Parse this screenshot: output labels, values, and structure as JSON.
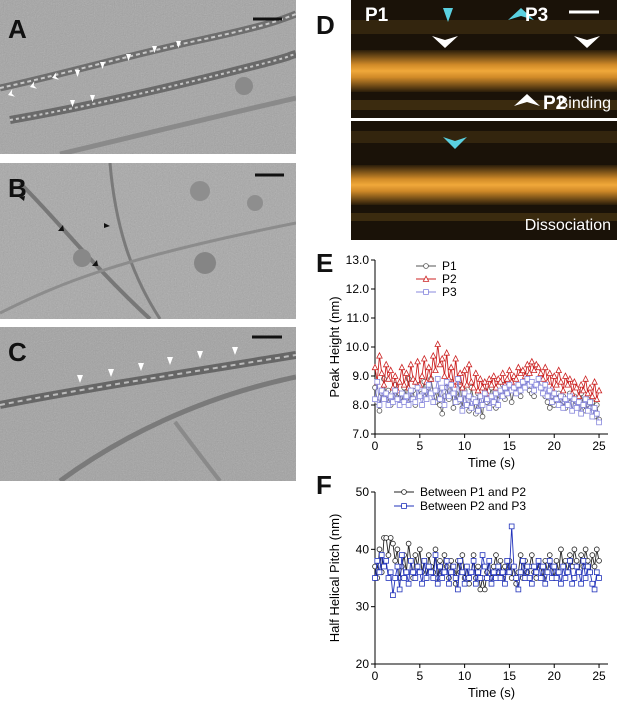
{
  "figure": {
    "panels": {
      "a": {
        "label": "A"
      },
      "b": {
        "label": "B"
      },
      "c": {
        "label": "C"
      },
      "d": {
        "label": "D",
        "markers": {
          "p1": "P1",
          "p2": "P2",
          "p3": "P3"
        },
        "captions": {
          "top": "Binding",
          "bottom": "Dissociation"
        }
      },
      "e": {
        "label": "E"
      },
      "f": {
        "label": "F"
      }
    },
    "colors": {
      "p1": "#555555",
      "p2": "#cc2222",
      "p3": "#8888dd",
      "between_p1_p2": "#222222",
      "between_p2_p3": "#2233bb",
      "afm_band": "#e8a030",
      "afm_marker_cyan": "#5ad0e0"
    }
  },
  "chart_data": [
    {
      "type": "line",
      "panel": "E",
      "xlabel": "Time (s)",
      "ylabel": "Peak Height (nm)",
      "xlim": [
        0,
        26
      ],
      "ylim": [
        7.0,
        13.0
      ],
      "xticks": [
        "0",
        "5",
        "10",
        "15",
        "20",
        "25"
      ],
      "yticks": [
        "7.0",
        "8.0",
        "9.0",
        "10.0",
        "11.0",
        "12.0",
        "13.0"
      ],
      "legend": "top-left",
      "series": [
        {
          "name": "P1",
          "marker": "circle",
          "x": [
            0.0,
            0.25,
            0.5,
            0.75,
            1.0,
            1.25,
            1.5,
            1.75,
            2.0,
            2.25,
            2.5,
            2.75,
            3.0,
            3.25,
            3.5,
            3.75,
            4.0,
            4.25,
            4.5,
            4.75,
            5.0,
            5.25,
            5.5,
            5.75,
            6.0,
            6.25,
            6.5,
            6.75,
            7.0,
            7.25,
            7.5,
            7.75,
            8.0,
            8.25,
            8.5,
            8.75,
            9.0,
            9.25,
            9.5,
            9.75,
            10.0,
            10.25,
            10.5,
            10.75,
            11.0,
            11.25,
            11.5,
            11.75,
            12.0,
            12.25,
            12.5,
            12.75,
            13.0,
            13.25,
            13.5,
            13.75,
            14.0,
            14.25,
            14.5,
            14.75,
            15.0,
            15.25,
            15.5,
            15.75,
            16.0,
            16.25,
            16.5,
            16.75,
            17.0,
            17.25,
            17.5,
            17.75,
            18.0,
            18.25,
            18.5,
            18.75,
            19.0,
            19.25,
            19.5,
            19.75,
            20.0,
            20.25,
            20.5,
            20.75,
            21.0,
            21.25,
            21.5,
            21.75,
            22.0,
            22.25,
            22.5,
            22.75,
            23.0,
            23.25,
            23.5,
            23.75,
            24.0,
            24.25,
            24.5,
            24.75,
            25.0
          ],
          "y": [
            8.6,
            8.1,
            7.8,
            8.4,
            8.9,
            8.2,
            8.5,
            8.0,
            8.3,
            8.7,
            8.2,
            8.4,
            8.1,
            8.6,
            8.3,
            8.9,
            8.2,
            8.5,
            8.0,
            8.7,
            8.3,
            8.4,
            8.8,
            8.2,
            8.6,
            8.9,
            8.4,
            8.1,
            8.5,
            8.0,
            7.7,
            8.3,
            8.6,
            8.2,
            8.8,
            7.9,
            8.4,
            8.1,
            8.7,
            7.9,
            8.5,
            8.0,
            7.8,
            8.6,
            8.2,
            7.7,
            8.4,
            8.0,
            7.6,
            8.5,
            8.1,
            8.3,
            8.6,
            8.0,
            7.9,
            8.4,
            8.3,
            8.7,
            8.2,
            8.4,
            8.6,
            8.1,
            8.5,
            8.4,
            8.7,
            8.3,
            8.6,
            8.8,
            9.0,
            8.5,
            8.4,
            8.3,
            8.7,
            8.9,
            8.6,
            8.4,
            8.3,
            8.1,
            7.9,
            8.3,
            8.0,
            8.2,
            8.4,
            8.0,
            8.3,
            7.9,
            8.2,
            8.4,
            7.8,
            8.3,
            8.1,
            7.9,
            8.4,
            8.0,
            7.8,
            8.2,
            7.9,
            8.1,
            7.6,
            8.0,
            7.5
          ]
        },
        {
          "name": "P2",
          "marker": "triangle",
          "x": [
            0.0,
            0.25,
            0.5,
            0.75,
            1.0,
            1.25,
            1.5,
            1.75,
            2.0,
            2.25,
            2.5,
            2.75,
            3.0,
            3.25,
            3.5,
            3.75,
            4.0,
            4.25,
            4.5,
            4.75,
            5.0,
            5.25,
            5.5,
            5.75,
            6.0,
            6.25,
            6.5,
            6.75,
            7.0,
            7.25,
            7.5,
            7.75,
            8.0,
            8.25,
            8.5,
            8.75,
            9.0,
            9.25,
            9.5,
            9.75,
            10.0,
            10.25,
            10.5,
            10.75,
            11.0,
            11.25,
            11.5,
            11.75,
            12.0,
            12.25,
            12.5,
            12.75,
            13.0,
            13.25,
            13.5,
            13.75,
            14.0,
            14.25,
            14.5,
            14.75,
            15.0,
            15.25,
            15.5,
            15.75,
            16.0,
            16.25,
            16.5,
            16.75,
            17.0,
            17.25,
            17.5,
            17.75,
            18.0,
            18.25,
            18.5,
            18.75,
            19.0,
            19.25,
            19.5,
            19.75,
            20.0,
            20.25,
            20.5,
            20.75,
            21.0,
            21.25,
            21.5,
            21.75,
            22.0,
            22.25,
            22.5,
            22.75,
            23.0,
            23.25,
            23.5,
            23.75,
            24.0,
            24.25,
            24.5,
            24.75,
            25.0
          ],
          "y": [
            9.3,
            8.8,
            9.7,
            9.1,
            8.7,
            9.4,
            8.9,
            9.2,
            8.6,
            9.0,
            8.5,
            8.8,
            9.3,
            8.7,
            9.1,
            8.6,
            9.4,
            8.9,
            8.8,
            9.5,
            8.7,
            9.0,
            9.6,
            8.8,
            9.3,
            8.9,
            9.7,
            9.2,
            10.1,
            9.4,
            9.6,
            9.0,
            9.8,
            8.9,
            9.3,
            8.7,
            9.6,
            8.8,
            9.1,
            8.6,
            9.2,
            8.7,
            9.4,
            8.8,
            8.6,
            9.1,
            8.5,
            8.9,
            8.6,
            8.8,
            8.4,
            8.9,
            8.7,
            9.0,
            8.6,
            8.9,
            8.8,
            9.1,
            8.7,
            8.9,
            9.2,
            8.8,
            9.0,
            8.9,
            9.3,
            9.1,
            9.2,
            9.0,
            9.4,
            9.1,
            9.5,
            9.2,
            9.4,
            9.3,
            9.1,
            8.9,
            9.3,
            8.8,
            9.1,
            8.6,
            9.0,
            8.7,
            9.2,
            8.8,
            8.5,
            9.0,
            8.7,
            8.9,
            8.4,
            8.8,
            8.6,
            8.3,
            8.7,
            8.5,
            8.9,
            8.4,
            8.6,
            8.3,
            8.8,
            8.2,
            8.5
          ]
        },
        {
          "name": "P3",
          "marker": "square",
          "x": [
            0.0,
            0.25,
            0.5,
            0.75,
            1.0,
            1.25,
            1.5,
            1.75,
            2.0,
            2.25,
            2.5,
            2.75,
            3.0,
            3.25,
            3.5,
            3.75,
            4.0,
            4.25,
            4.5,
            4.75,
            5.0,
            5.25,
            5.5,
            5.75,
            6.0,
            6.25,
            6.5,
            6.75,
            7.0,
            7.25,
            7.5,
            7.75,
            8.0,
            8.25,
            8.5,
            8.75,
            9.0,
            9.25,
            9.5,
            9.75,
            10.0,
            10.25,
            10.5,
            10.75,
            11.0,
            11.25,
            11.5,
            11.75,
            12.0,
            12.25,
            12.5,
            12.75,
            13.0,
            13.25,
            13.5,
            13.75,
            14.0,
            14.25,
            14.5,
            14.75,
            15.0,
            15.25,
            15.5,
            15.75,
            16.0,
            16.25,
            16.5,
            16.75,
            17.0,
            17.25,
            17.5,
            17.75,
            18.0,
            18.25,
            18.5,
            18.75,
            19.0,
            19.25,
            19.5,
            19.75,
            20.0,
            20.25,
            20.5,
            20.75,
            21.0,
            21.25,
            21.5,
            21.75,
            22.0,
            22.25,
            22.5,
            22.75,
            23.0,
            23.25,
            23.5,
            23.75,
            24.0,
            24.25,
            24.5,
            24.75,
            25.0
          ],
          "y": [
            8.2,
            8.8,
            8.0,
            8.5,
            8.2,
            8.4,
            8.0,
            8.3,
            8.1,
            8.5,
            8.2,
            8.0,
            8.4,
            8.1,
            8.3,
            8.0,
            8.5,
            8.2,
            8.1,
            8.6,
            8.3,
            8.0,
            8.5,
            8.2,
            8.7,
            8.4,
            8.1,
            8.5,
            8.9,
            8.2,
            8.6,
            8.0,
            8.8,
            8.3,
            8.7,
            8.4,
            8.1,
            8.9,
            8.2,
            7.8,
            8.4,
            8.0,
            8.3,
            7.9,
            8.2,
            8.1,
            7.8,
            8.3,
            8.0,
            8.4,
            8.2,
            7.9,
            8.3,
            8.1,
            8.4,
            8.0,
            8.5,
            8.3,
            8.6,
            8.4,
            8.7,
            8.5,
            8.6,
            8.4,
            8.7,
            8.5,
            8.8,
            8.6,
            8.9,
            8.7,
            8.8,
            8.5,
            8.7,
            8.9,
            8.6,
            8.4,
            8.7,
            8.3,
            8.5,
            8.1,
            8.4,
            8.2,
            8.0,
            8.3,
            7.9,
            8.2,
            8.0,
            8.3,
            7.8,
            8.2,
            7.9,
            8.1,
            7.7,
            8.0,
            8.2,
            7.8,
            8.1,
            7.6,
            7.9,
            7.7,
            7.4
          ]
        }
      ]
    },
    {
      "type": "line",
      "panel": "F",
      "xlabel": "Time (s)",
      "ylabel": "Half Helical Pitch (nm)",
      "xlim": [
        0,
        26
      ],
      "ylim": [
        20,
        50
      ],
      "xticks": [
        "0",
        "5",
        "10",
        "15",
        "20",
        "25"
      ],
      "yticks": [
        "20",
        "30",
        "40",
        "50"
      ],
      "legend": "top",
      "series": [
        {
          "name": "Between P1 and P2",
          "marker": "circle",
          "x": [
            0.0,
            0.25,
            0.5,
            0.75,
            1.0,
            1.25,
            1.5,
            1.75,
            2.0,
            2.25,
            2.5,
            2.75,
            3.0,
            3.25,
            3.5,
            3.75,
            4.0,
            4.25,
            4.5,
            4.75,
            5.0,
            5.25,
            5.5,
            5.75,
            6.0,
            6.25,
            6.5,
            6.75,
            7.0,
            7.25,
            7.5,
            7.75,
            8.0,
            8.25,
            8.5,
            8.75,
            9.0,
            9.25,
            9.5,
            9.75,
            10.0,
            10.25,
            10.5,
            10.75,
            11.0,
            11.25,
            11.5,
            11.75,
            12.0,
            12.25,
            12.5,
            12.75,
            13.0,
            13.25,
            13.5,
            13.75,
            14.0,
            14.25,
            14.5,
            14.75,
            15.0,
            15.25,
            15.5,
            15.75,
            16.0,
            16.25,
            16.5,
            16.75,
            17.0,
            17.25,
            17.5,
            17.75,
            18.0,
            18.25,
            18.5,
            18.75,
            19.0,
            19.25,
            19.5,
            19.75,
            20.0,
            20.25,
            20.5,
            20.75,
            21.0,
            21.25,
            21.5,
            21.75,
            22.0,
            22.25,
            22.5,
            22.75,
            23.0,
            23.25,
            23.5,
            23.75,
            24.0,
            24.25,
            24.5,
            24.75,
            25.0
          ],
          "y": [
            37,
            35,
            40,
            36,
            42,
            42,
            39,
            42,
            41,
            38,
            40,
            35,
            37,
            39,
            36,
            41,
            38,
            35,
            39,
            37,
            40,
            36,
            38,
            35,
            39,
            37,
            36,
            40,
            35,
            38,
            36,
            39,
            37,
            35,
            38,
            36,
            34,
            38,
            36,
            39,
            35,
            37,
            34,
            36,
            39,
            35,
            37,
            33,
            35,
            33,
            36,
            38,
            35,
            37,
            39,
            36,
            38,
            35,
            37,
            36,
            38,
            35,
            37,
            34,
            36,
            39,
            35,
            38,
            36,
            37,
            39,
            36,
            35,
            38,
            37,
            35,
            38,
            36,
            39,
            37,
            35,
            38,
            36,
            40,
            37,
            38,
            36,
            39,
            37,
            40,
            38,
            36,
            39,
            37,
            40,
            38,
            36,
            39,
            37,
            40,
            38
          ]
        },
        {
          "name": "Between P2 and P3",
          "marker": "square",
          "x": [
            0.0,
            0.25,
            0.5,
            0.75,
            1.0,
            1.25,
            1.5,
            1.75,
            2.0,
            2.25,
            2.5,
            2.75,
            3.0,
            3.25,
            3.5,
            3.75,
            4.0,
            4.25,
            4.5,
            4.75,
            5.0,
            5.25,
            5.5,
            5.75,
            6.0,
            6.25,
            6.5,
            6.75,
            7.0,
            7.25,
            7.5,
            7.75,
            8.0,
            8.25,
            8.5,
            8.75,
            9.0,
            9.25,
            9.5,
            9.75,
            10.0,
            10.25,
            10.5,
            10.75,
            11.0,
            11.25,
            11.5,
            11.75,
            12.0,
            12.25,
            12.5,
            12.75,
            13.0,
            13.25,
            13.5,
            13.75,
            14.0,
            14.25,
            14.5,
            14.75,
            15.0,
            15.25,
            15.5,
            15.75,
            16.0,
            16.25,
            16.5,
            16.75,
            17.0,
            17.25,
            17.5,
            17.75,
            18.0,
            18.25,
            18.5,
            18.75,
            19.0,
            19.25,
            19.5,
            19.75,
            20.0,
            20.25,
            20.5,
            20.75,
            21.0,
            21.25,
            21.5,
            21.75,
            22.0,
            22.25,
            22.5,
            22.75,
            23.0,
            23.25,
            23.5,
            23.75,
            24.0,
            24.25,
            24.5,
            24.75,
            25.0
          ],
          "y": [
            35,
            38,
            36,
            39,
            37,
            38,
            35,
            36,
            32,
            35,
            37,
            33,
            39,
            35,
            36,
            34,
            38,
            36,
            35,
            37,
            36,
            34,
            38,
            35,
            37,
            36,
            35,
            39,
            34,
            37,
            35,
            36,
            38,
            34,
            36,
            37,
            35,
            33,
            38,
            36,
            34,
            37,
            35,
            36,
            38,
            34,
            36,
            35,
            39,
            37,
            35,
            38,
            34,
            36,
            35,
            37,
            35,
            36,
            34,
            38,
            36,
            44,
            37,
            35,
            33,
            36,
            38,
            35,
            37,
            35,
            34,
            37,
            36,
            38,
            35,
            37,
            34,
            36,
            38,
            35,
            37,
            35,
            36,
            34,
            37,
            35,
            36,
            38,
            34,
            35,
            37,
            36,
            34,
            38,
            35,
            37,
            36,
            34,
            33,
            36,
            35
          ]
        }
      ]
    }
  ]
}
